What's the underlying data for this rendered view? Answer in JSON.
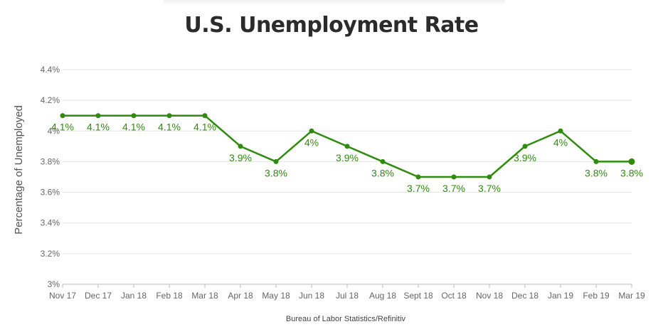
{
  "chart_data": {
    "type": "line",
    "title": "U.S. Unemployment Rate",
    "ylabel": "Percentage of Unemployed",
    "xlabel": "",
    "source": "Bureau of Labor Statistics/Refinitiv",
    "categories": [
      "Nov 17",
      "Dec 17",
      "Jan 18",
      "Feb 18",
      "Mar 18",
      "Apr 18",
      "May 18",
      "Jun 18",
      "Jul 18",
      "Aug 18",
      "Sept 18",
      "Oct 18",
      "Nov 18",
      "Dec 18",
      "Jan 19",
      "Feb 19",
      "Mar 19"
    ],
    "series": [
      {
        "values": [
          4.1,
          4.1,
          4.1,
          4.1,
          4.1,
          3.9,
          3.8,
          4.0,
          3.9,
          3.8,
          3.7,
          3.7,
          3.7,
          3.9,
          4.0,
          3.8,
          3.8
        ],
        "data_labels": [
          "4.1%",
          "4.1%",
          "4.1%",
          "4.1%",
          "4.1%",
          "3.9%",
          "3.8%",
          "4%",
          "3.9%",
          "3.8%",
          "3.7%",
          "3.7%",
          "3.7%",
          "3.9%",
          "4%",
          "3.8%",
          "3.8%"
        ],
        "color": "#2e8b0c"
      }
    ],
    "ylim": [
      3.0,
      4.4
    ],
    "yticks": [
      3.0,
      3.2,
      3.4,
      3.6,
      3.8,
      4.0,
      4.2,
      4.4
    ],
    "ytick_labels": [
      "3%",
      "3.2%",
      "3.4%",
      "3.6%",
      "3.8%",
      "4%",
      "4.2%",
      "4.4%"
    ],
    "grid": true,
    "legend": "none",
    "colors": {
      "line": "#2e8b0c",
      "label": "#2e8b0c",
      "grid": "#e3e3e3",
      "axis": "#bdbdbd"
    }
  }
}
